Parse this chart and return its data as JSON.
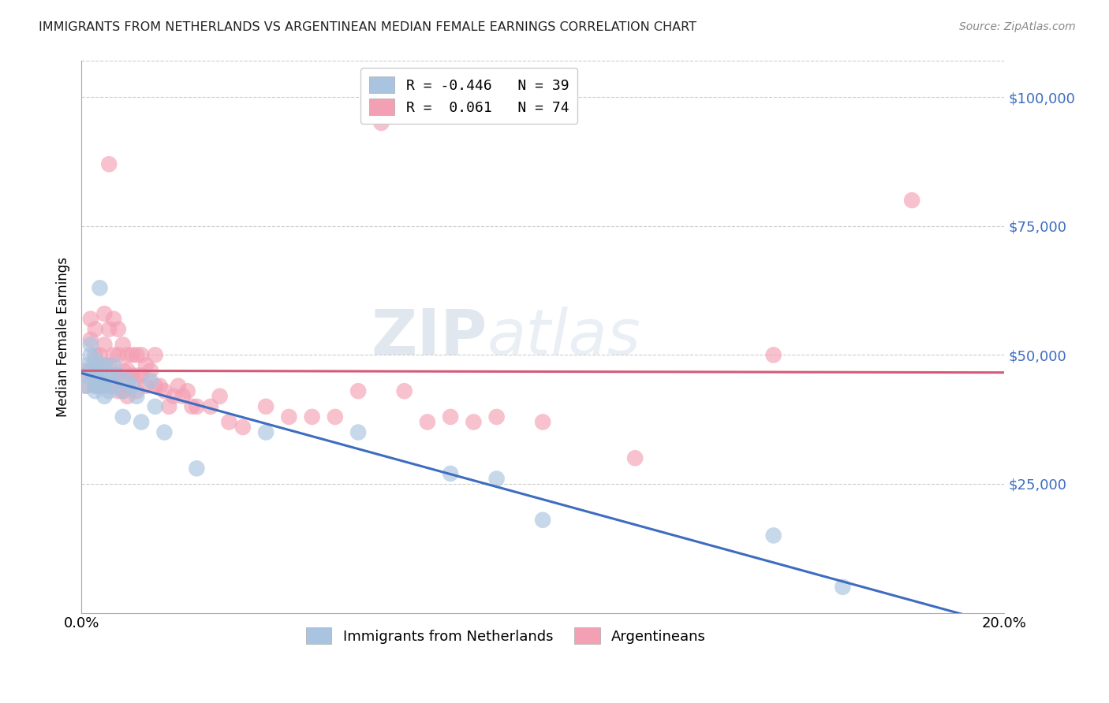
{
  "title": "IMMIGRANTS FROM NETHERLANDS VS ARGENTINEAN MEDIAN FEMALE EARNINGS CORRELATION CHART",
  "source": "Source: ZipAtlas.com",
  "ylabel": "Median Female Earnings",
  "x_min": 0.0,
  "x_max": 0.2,
  "y_min": 0,
  "y_max": 107000,
  "ytick_vals": [
    25000,
    50000,
    75000,
    100000
  ],
  "ytick_labels": [
    "$25,000",
    "$50,000",
    "$75,000",
    "$100,000"
  ],
  "xtick_vals": [
    0.0,
    0.05,
    0.1,
    0.15,
    0.2
  ],
  "xtick_labels": [
    "0.0%",
    "",
    "",
    "",
    "20.0%"
  ],
  "blue_color": "#a8c4e0",
  "pink_color": "#f4a0b4",
  "blue_line_color": "#3d6cc0",
  "pink_line_color": "#d45a7a",
  "watermark_zip": "ZIP",
  "watermark_atlas": "atlas",
  "blue_scatter_x": [
    0.001,
    0.001,
    0.001,
    0.002,
    0.002,
    0.002,
    0.003,
    0.003,
    0.003,
    0.003,
    0.004,
    0.004,
    0.004,
    0.004,
    0.005,
    0.005,
    0.005,
    0.006,
    0.006,
    0.007,
    0.007,
    0.008,
    0.009,
    0.009,
    0.01,
    0.011,
    0.012,
    0.013,
    0.015,
    0.016,
    0.018,
    0.025,
    0.04,
    0.06,
    0.08,
    0.09,
    0.1,
    0.15,
    0.165
  ],
  "blue_scatter_y": [
    48000,
    46000,
    44000,
    52000,
    50000,
    47000,
    49000,
    46000,
    44000,
    43000,
    48000,
    46000,
    44000,
    63000,
    48000,
    45000,
    42000,
    46000,
    43000,
    48000,
    44000,
    46000,
    38000,
    43000,
    45000,
    44000,
    42000,
    37000,
    45000,
    40000,
    35000,
    28000,
    35000,
    35000,
    27000,
    26000,
    18000,
    15000,
    5000
  ],
  "pink_scatter_x": [
    0.001,
    0.001,
    0.002,
    0.002,
    0.002,
    0.003,
    0.003,
    0.003,
    0.003,
    0.004,
    0.004,
    0.004,
    0.005,
    0.005,
    0.005,
    0.005,
    0.006,
    0.006,
    0.006,
    0.006,
    0.007,
    0.007,
    0.007,
    0.008,
    0.008,
    0.008,
    0.008,
    0.009,
    0.009,
    0.009,
    0.01,
    0.01,
    0.01,
    0.01,
    0.011,
    0.011,
    0.012,
    0.012,
    0.012,
    0.013,
    0.013,
    0.014,
    0.014,
    0.015,
    0.016,
    0.016,
    0.017,
    0.018,
    0.019,
    0.02,
    0.021,
    0.022,
    0.023,
    0.024,
    0.025,
    0.028,
    0.03,
    0.032,
    0.035,
    0.04,
    0.045,
    0.05,
    0.055,
    0.06,
    0.065,
    0.07,
    0.075,
    0.08,
    0.085,
    0.09,
    0.1,
    0.12,
    0.15,
    0.18
  ],
  "pink_scatter_y": [
    47000,
    44000,
    57000,
    53000,
    47000,
    55000,
    50000,
    47000,
    44000,
    50000,
    46000,
    44000,
    58000,
    52000,
    48000,
    44000,
    87000,
    55000,
    48000,
    44000,
    57000,
    50000,
    46000,
    55000,
    50000,
    46000,
    43000,
    52000,
    47000,
    43000,
    50000,
    47000,
    44000,
    42000,
    50000,
    46000,
    50000,
    46000,
    43000,
    50000,
    46000,
    48000,
    44000,
    47000,
    50000,
    44000,
    44000,
    43000,
    40000,
    42000,
    44000,
    42000,
    43000,
    40000,
    40000,
    40000,
    42000,
    37000,
    36000,
    40000,
    38000,
    38000,
    38000,
    43000,
    95000,
    43000,
    37000,
    38000,
    37000,
    38000,
    37000,
    30000,
    50000,
    80000
  ]
}
